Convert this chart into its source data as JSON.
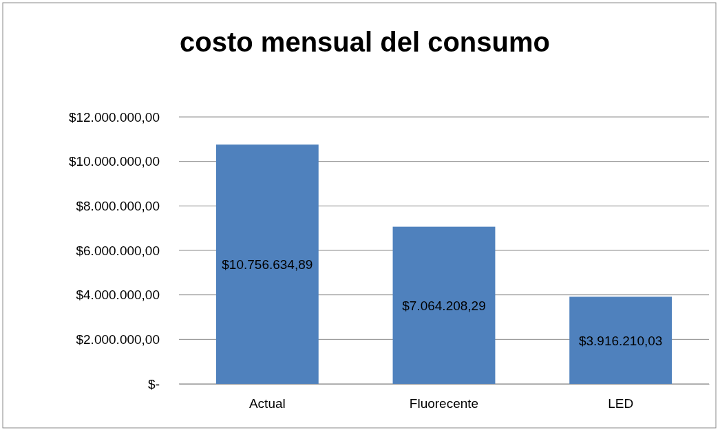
{
  "chart_data": {
    "type": "bar",
    "title": "costo mensual del consumo",
    "categories": [
      "Actual",
      "Fluorecente",
      "LED"
    ],
    "values": [
      10756634.89,
      7064208.29,
      3916210.03
    ],
    "value_labels": [
      "$10.756.634,89",
      "$7.064.208,29",
      "$3.916.210,03"
    ],
    "color": "#4f81bd",
    "ylim": [
      0,
      12000000
    ],
    "yticks": [
      {
        "value": 0,
        "label": "$-"
      },
      {
        "value": 2000000,
        "label": "$2.000.000,00"
      },
      {
        "value": 4000000,
        "label": "$4.000.000,00"
      },
      {
        "value": 6000000,
        "label": "$6.000.000,00"
      },
      {
        "value": 8000000,
        "label": "$8.000.000,00"
      },
      {
        "value": 10000000,
        "label": "$10.000.000,00"
      },
      {
        "value": 12000000,
        "label": "$12.000.000,00"
      }
    ],
    "grid": "y"
  }
}
